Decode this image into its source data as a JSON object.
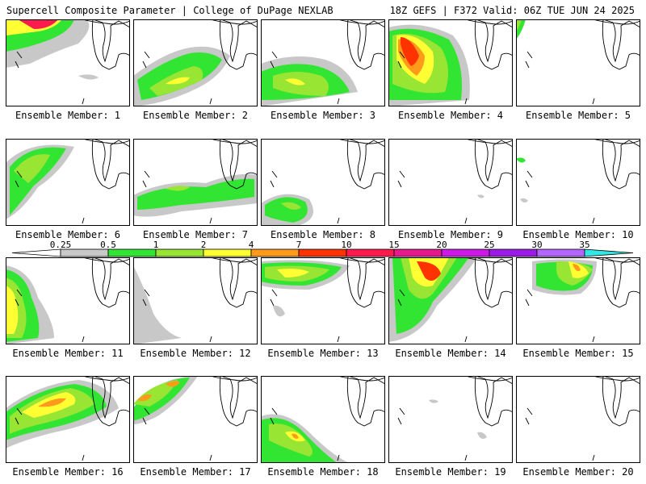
{
  "header": {
    "left": "Supercell Composite Parameter | College of DuPage NEXLAB",
    "right": "18Z GEFS | F372 Valid: 06Z TUE JUN 24 2025"
  },
  "panel_label_prefix": "Ensemble Member:",
  "members": [
    {
      "number": "1"
    },
    {
      "number": "2"
    },
    {
      "number": "3"
    },
    {
      "number": "4"
    },
    {
      "number": "5"
    },
    {
      "number": "6"
    },
    {
      "number": "7"
    },
    {
      "number": "8"
    },
    {
      "number": "9"
    },
    {
      "number": "10"
    },
    {
      "number": "11"
    },
    {
      "number": "12"
    },
    {
      "number": "13"
    },
    {
      "number": "14"
    },
    {
      "number": "15"
    },
    {
      "number": "16"
    },
    {
      "number": "17"
    },
    {
      "number": "18"
    },
    {
      "number": "19"
    },
    {
      "number": "20"
    }
  ],
  "legend": {
    "ticks": [
      "0.25",
      "0.5",
      "1",
      "2",
      "4",
      "7",
      "10",
      "15",
      "20",
      "25",
      "30",
      "35"
    ],
    "colors": [
      "#c8c8c8",
      "#33e533",
      "#99e533",
      "#ffff33",
      "#ff9a1a",
      "#ff3300",
      "#ff1a4d",
      "#e6198c",
      "#cc19e6",
      "#9a1ae6",
      "#b366ff",
      "#33e6e6"
    ]
  }
}
